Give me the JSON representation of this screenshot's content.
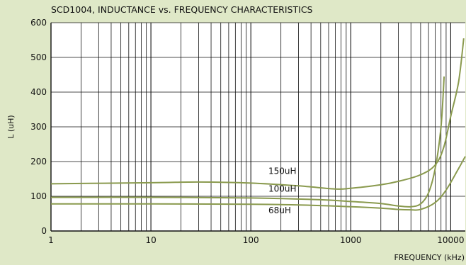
{
  "chart_data": {
    "type": "line",
    "title": "SCD1004, INDUCTANCE vs. FREQUENCY CHARACTERISTICS",
    "xlabel": "FREQUENCY (kHz)",
    "ylabel": "L (uH)",
    "x_scale": "log",
    "xlim": [
      1,
      14000
    ],
    "ylim": [
      0,
      600
    ],
    "grid": true,
    "x_tick_labels": [
      "1",
      "10",
      "100",
      "1000",
      "10000"
    ],
    "y_tick_labels": [
      "0",
      "100",
      "200",
      "300",
      "400",
      "500",
      "600"
    ],
    "series": [
      {
        "name": "150uH",
        "points": [
          [
            1,
            136
          ],
          [
            10,
            139
          ],
          [
            30,
            141
          ],
          [
            100,
            138
          ],
          [
            300,
            130
          ],
          [
            700,
            121
          ],
          [
            1000,
            123
          ],
          [
            2000,
            133
          ],
          [
            3000,
            143
          ],
          [
            5000,
            162
          ],
          [
            7000,
            190
          ],
          [
            8500,
            240
          ],
          [
            10000,
            330
          ],
          [
            12000,
            430
          ],
          [
            13500,
            555
          ]
        ]
      },
      {
        "name": "100uH",
        "points": [
          [
            1,
            97
          ],
          [
            10,
            97
          ],
          [
            100,
            95
          ],
          [
            500,
            90
          ],
          [
            1000,
            85
          ],
          [
            2000,
            79
          ],
          [
            3000,
            72
          ],
          [
            4000,
            70
          ],
          [
            5000,
            78
          ],
          [
            6000,
            110
          ],
          [
            7000,
            180
          ],
          [
            8000,
            300
          ],
          [
            8600,
            445
          ]
        ]
      },
      {
        "name": "68uH",
        "points": [
          [
            1,
            78
          ],
          [
            10,
            78
          ],
          [
            100,
            77
          ],
          [
            300,
            75
          ],
          [
            1000,
            70
          ],
          [
            2000,
            66
          ],
          [
            3000,
            62
          ],
          [
            4000,
            61
          ],
          [
            5000,
            62
          ],
          [
            7000,
            82
          ],
          [
            9000,
            118
          ],
          [
            12000,
            180
          ],
          [
            14000,
            215
          ]
        ]
      }
    ],
    "label_positions": [
      {
        "name": "150uH",
        "x": 150,
        "y": 160
      },
      {
        "name": "100uH",
        "x": 150,
        "y": 109
      },
      {
        "name": "68uH",
        "x": 150,
        "y": 47
      }
    ],
    "colors": {
      "background": "#dfe8c7",
      "plot_area": "#ffffff",
      "grid": "#111111",
      "series": "#8a9a4e"
    }
  }
}
